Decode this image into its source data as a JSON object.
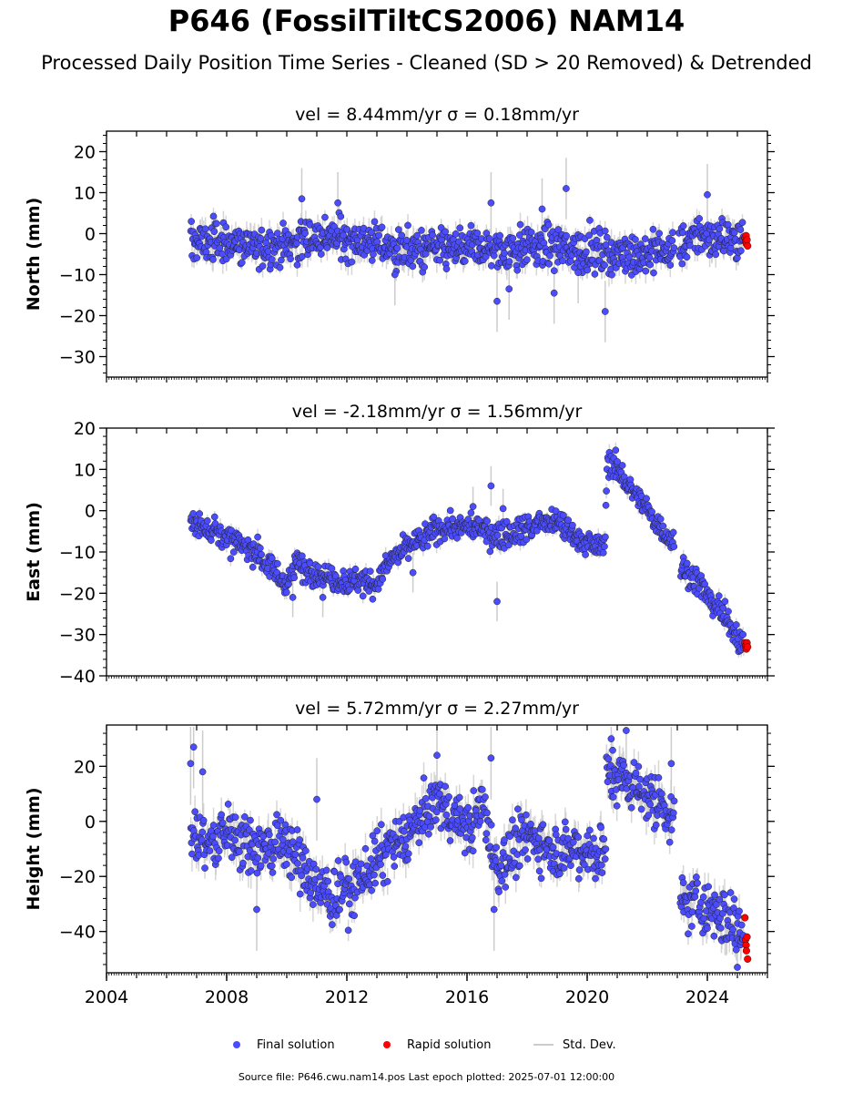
{
  "title": "P646 (FossilTiltCS2006) NAM14",
  "subtitle": "Processed Daily Position Time Series - Cleaned (SD > 20 Removed) & Detrended",
  "footer": "Source file: P646.cwu.nam14.pos  Last epoch plotted: 2025-07-01 12:00:00",
  "legend": {
    "final": "Final solution",
    "rapid": "Rapid solution",
    "std": "Std. Dev."
  },
  "colors": {
    "final": "#4c4cff",
    "rapid": "#ff0000",
    "std": "#cccccc"
  },
  "chart_data": [
    {
      "type": "scatter",
      "panel": "north",
      "title": "vel = 8.44mm/yr   σ = 0.18mm/yr",
      "ylabel": "North (mm)",
      "xlim": [
        2004.0,
        2026.0
      ],
      "ylim": [
        -35,
        25
      ],
      "yticks": [
        -30,
        -20,
        -10,
        0,
        10,
        20
      ],
      "xticks": [],
      "trend": [
        {
          "x": 2006.8,
          "y": -2
        },
        {
          "x": 2008.0,
          "y": -2
        },
        {
          "x": 2009.0,
          "y": -3.5
        },
        {
          "x": 2010.0,
          "y": -2.5
        },
        {
          "x": 2011.0,
          "y": -1
        },
        {
          "x": 2012.0,
          "y": -1
        },
        {
          "x": 2013.0,
          "y": -2.5
        },
        {
          "x": 2014.0,
          "y": -4
        },
        {
          "x": 2015.0,
          "y": -4
        },
        {
          "x": 2016.0,
          "y": -3.5
        },
        {
          "x": 2017.0,
          "y": -4
        },
        {
          "x": 2018.0,
          "y": -3
        },
        {
          "x": 2019.0,
          "y": -3.5
        },
        {
          "x": 2020.0,
          "y": -4
        },
        {
          "x": 2021.0,
          "y": -5
        },
        {
          "x": 2022.0,
          "y": -5
        },
        {
          "x": 2022.9,
          "y": -3.5
        },
        {
          "x": 2023.0,
          "y": -3
        },
        {
          "x": 2023.5,
          "y": -1
        },
        {
          "x": 2024.5,
          "y": -1
        },
        {
          "x": 2025.2,
          "y": -1.5
        }
      ],
      "spread": 2.5,
      "gaps": [
        [
          2022.9,
          2023.05
        ]
      ],
      "outliers": [
        {
          "x": 2013.6,
          "y": -10
        },
        {
          "x": 2017.0,
          "y": -16.5
        },
        {
          "x": 2017.4,
          "y": -13.5
        },
        {
          "x": 2018.9,
          "y": -14.5
        },
        {
          "x": 2019.3,
          "y": 11
        },
        {
          "x": 2020.6,
          "y": -19
        },
        {
          "x": 2016.8,
          "y": 7.5
        },
        {
          "x": 2024.0,
          "y": 9.5
        },
        {
          "x": 2010.5,
          "y": 8.5
        },
        {
          "x": 2011.7,
          "y": 7.5
        },
        {
          "x": 2018.5,
          "y": 6
        },
        {
          "x": 2019.7,
          "y": -9.5
        }
      ],
      "rapid": [
        {
          "x": 2025.25,
          "y": -1
        },
        {
          "x": 2025.27,
          "y": -2
        },
        {
          "x": 2025.29,
          "y": -0.5
        },
        {
          "x": 2025.3,
          "y": -2.5
        },
        {
          "x": 2025.32,
          "y": -1.5
        },
        {
          "x": 2025.34,
          "y": -3
        }
      ]
    },
    {
      "type": "scatter",
      "panel": "east",
      "title": "vel = -2.18mm/yr   σ = 1.56mm/yr",
      "ylabel": "East (mm)",
      "xlim": [
        2004.0,
        2026.0
      ],
      "ylim": [
        -40,
        20
      ],
      "yticks": [
        -40,
        -30,
        -20,
        -10,
        0,
        10,
        20
      ],
      "xticks": [],
      "trend": [
        {
          "x": 2006.8,
          "y": -3
        },
        {
          "x": 2007.5,
          "y": -4
        },
        {
          "x": 2008.0,
          "y": -7
        },
        {
          "x": 2009.0,
          "y": -10
        },
        {
          "x": 2010.0,
          "y": -18
        },
        {
          "x": 2010.3,
          "y": -13
        },
        {
          "x": 2011.0,
          "y": -15
        },
        {
          "x": 2012.0,
          "y": -17
        },
        {
          "x": 2012.9,
          "y": -18
        },
        {
          "x": 2013.5,
          "y": -12
        },
        {
          "x": 2014.0,
          "y": -9
        },
        {
          "x": 2014.5,
          "y": -7
        },
        {
          "x": 2015.0,
          "y": -4
        },
        {
          "x": 2016.0,
          "y": -4
        },
        {
          "x": 2017.0,
          "y": -6
        },
        {
          "x": 2018.0,
          "y": -4
        },
        {
          "x": 2019.0,
          "y": -3
        },
        {
          "x": 2020.0,
          "y": -8
        },
        {
          "x": 2020.6,
          "y": -9
        },
        {
          "x": 2020.65,
          "y": 12
        },
        {
          "x": 2021.0,
          "y": 10
        },
        {
          "x": 2022.0,
          "y": 0
        },
        {
          "x": 2022.9,
          "y": -8
        },
        {
          "x": 2023.1,
          "y": -13
        },
        {
          "x": 2024.0,
          "y": -20
        },
        {
          "x": 2025.0,
          "y": -30
        },
        {
          "x": 2025.3,
          "y": -33
        }
      ],
      "spread": 1.6,
      "gaps": [
        [
          2022.9,
          2023.1
        ]
      ],
      "outliers": [
        {
          "x": 2016.8,
          "y": 6
        },
        {
          "x": 2017.0,
          "y": -22
        },
        {
          "x": 2016.2,
          "y": 1
        },
        {
          "x": 2017.2,
          "y": 0.5
        },
        {
          "x": 2011.2,
          "y": -21
        },
        {
          "x": 2014.2,
          "y": -15
        },
        {
          "x": 2010.2,
          "y": -21
        }
      ],
      "rapid": [
        {
          "x": 2025.25,
          "y": -32
        },
        {
          "x": 2025.27,
          "y": -33
        },
        {
          "x": 2025.29,
          "y": -32.5
        },
        {
          "x": 2025.3,
          "y": -33.5
        },
        {
          "x": 2025.32,
          "y": -32
        },
        {
          "x": 2025.34,
          "y": -33
        }
      ]
    },
    {
      "type": "scatter",
      "panel": "height",
      "title": "vel = 5.72mm/yr   σ = 2.27mm/yr",
      "ylabel": "Height (mm)",
      "xlim": [
        2004.0,
        2026.0
      ],
      "ylim": [
        -55,
        35
      ],
      "yticks": [
        -40,
        -20,
        0,
        20
      ],
      "xticks": [
        "2004",
        "2008",
        "2012",
        "2016",
        "2020",
        "2024"
      ],
      "trend": [
        {
          "x": 2006.8,
          "y": -5
        },
        {
          "x": 2007.5,
          "y": -8
        },
        {
          "x": 2008.0,
          "y": -4
        },
        {
          "x": 2009.0,
          "y": -10
        },
        {
          "x": 2010.0,
          "y": -8
        },
        {
          "x": 2010.8,
          "y": -22
        },
        {
          "x": 2011.5,
          "y": -28
        },
        {
          "x": 2012.0,
          "y": -25
        },
        {
          "x": 2013.0,
          "y": -15
        },
        {
          "x": 2014.0,
          "y": -5
        },
        {
          "x": 2015.0,
          "y": 8
        },
        {
          "x": 2015.5,
          "y": 2
        },
        {
          "x": 2016.0,
          "y": -3
        },
        {
          "x": 2016.5,
          "y": 5
        },
        {
          "x": 2017.0,
          "y": -18
        },
        {
          "x": 2018.0,
          "y": -5
        },
        {
          "x": 2019.0,
          "y": -10
        },
        {
          "x": 2020.0,
          "y": -10
        },
        {
          "x": 2020.6,
          "y": -12
        },
        {
          "x": 2020.65,
          "y": 18
        },
        {
          "x": 2021.5,
          "y": 14
        },
        {
          "x": 2022.5,
          "y": 5
        },
        {
          "x": 2022.9,
          "y": 2
        },
        {
          "x": 2023.1,
          "y": -27
        },
        {
          "x": 2024.0,
          "y": -32
        },
        {
          "x": 2025.0,
          "y": -38
        },
        {
          "x": 2025.3,
          "y": -42
        }
      ],
      "spread": 5,
      "gaps": [
        [
          2022.9,
          2023.1
        ]
      ],
      "outliers": [
        {
          "x": 2006.9,
          "y": 27
        },
        {
          "x": 2007.2,
          "y": 18
        },
        {
          "x": 2006.8,
          "y": 21
        },
        {
          "x": 2015.0,
          "y": 24
        },
        {
          "x": 2016.8,
          "y": 23
        },
        {
          "x": 2021.3,
          "y": 33
        },
        {
          "x": 2020.8,
          "y": 30
        },
        {
          "x": 2022.8,
          "y": 21
        },
        {
          "x": 2011.0,
          "y": 8
        },
        {
          "x": 2009.0,
          "y": -32
        },
        {
          "x": 2016.9,
          "y": -32
        },
        {
          "x": 2025.0,
          "y": -53
        }
      ],
      "rapid": [
        {
          "x": 2025.25,
          "y": -35
        },
        {
          "x": 2025.27,
          "y": -43
        },
        {
          "x": 2025.29,
          "y": -45
        },
        {
          "x": 2025.3,
          "y": -47
        },
        {
          "x": 2025.32,
          "y": -42
        },
        {
          "x": 2025.34,
          "y": -50
        }
      ]
    }
  ]
}
